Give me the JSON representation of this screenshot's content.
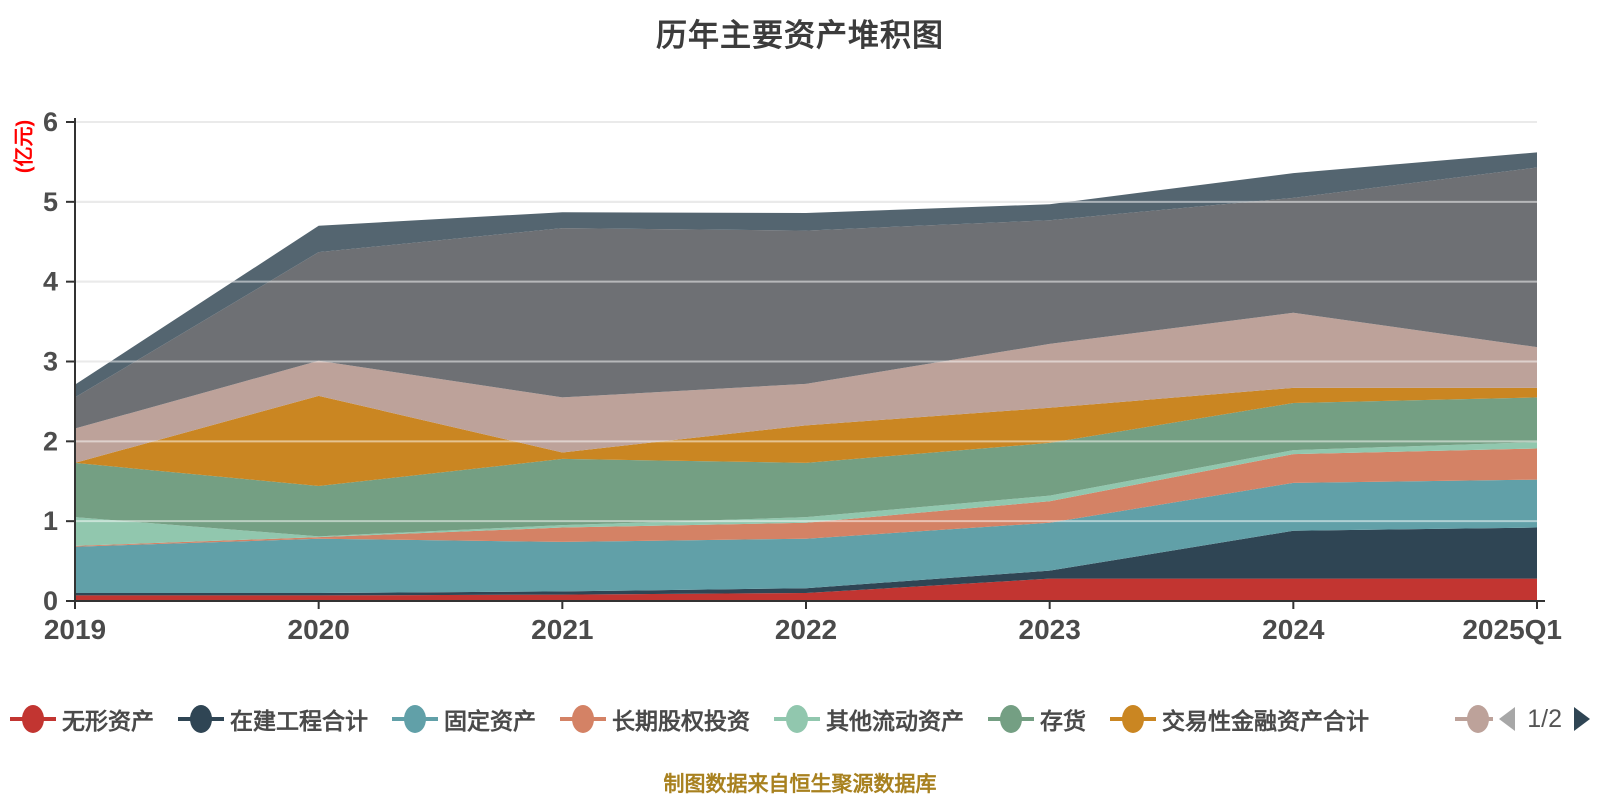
{
  "header": {
    "title": "历年主要资产堆积图"
  },
  "y_axis": {
    "unit_label": "(亿元)",
    "unit_color": "#ff0000",
    "tick_labels": [
      "0",
      "1",
      "2",
      "3",
      "4",
      "5",
      "6"
    ],
    "tick_color": "#4d4d4d"
  },
  "x_axis": {
    "tick_labels": [
      "2019",
      "2020",
      "2021",
      "2022",
      "2023",
      "2024",
      "2025Q1"
    ],
    "tick_color": "#4a4a4a"
  },
  "legend": {
    "page_label": "1/2",
    "prev_arrow_color": "#a7a7a7",
    "next_arrow_color": "#2f4554",
    "overflow_marker_color": "#bda29a"
  },
  "footer": {
    "caption": "制图数据来自恒生聚源数据库",
    "color": "#a8811f"
  },
  "chart_data": {
    "type": "area",
    "stacked": true,
    "title": "历年主要资产堆积图",
    "ylabel": "(亿元)",
    "categories": [
      "2019",
      "2020",
      "2021",
      "2022",
      "2023",
      "2024",
      "2025Q1"
    ],
    "ylim": [
      0,
      6
    ],
    "yticks": [
      0,
      1,
      2,
      3,
      4,
      5,
      6
    ],
    "grid": true,
    "legend_position": "bottom",
    "legend_page": "1/2",
    "series": [
      {
        "name": "无形资产",
        "color": "#c23531",
        "in_legend": true,
        "values": [
          0.07,
          0.07,
          0.08,
          0.1,
          0.28,
          0.28,
          0.28
        ]
      },
      {
        "name": "在建工程合计",
        "color": "#2f4554",
        "in_legend": true,
        "values": [
          0.03,
          0.03,
          0.04,
          0.06,
          0.1,
          0.6,
          0.64
        ]
      },
      {
        "name": "固定资产",
        "color": "#61a0a8",
        "in_legend": true,
        "values": [
          0.58,
          0.68,
          0.62,
          0.62,
          0.6,
          0.6,
          0.6
        ]
      },
      {
        "name": "长期股权投资",
        "color": "#d48265",
        "in_legend": true,
        "values": [
          0.01,
          0.02,
          0.18,
          0.2,
          0.27,
          0.36,
          0.39
        ]
      },
      {
        "name": "其他流动资产",
        "color": "#91c7ae",
        "in_legend": true,
        "values": [
          0.36,
          0.01,
          0.03,
          0.07,
          0.07,
          0.05,
          0.08
        ]
      },
      {
        "name": "存货",
        "color": "#749f83",
        "in_legend": true,
        "values": [
          0.68,
          0.63,
          0.83,
          0.68,
          0.66,
          0.59,
          0.56
        ]
      },
      {
        "name": "交易性金融资产合计",
        "color": "#ca8622",
        "in_legend": true,
        "values": [
          0.0,
          1.13,
          0.08,
          0.47,
          0.44,
          0.19,
          0.12
        ]
      },
      {
        "name": "",
        "color": "#bda29a",
        "in_legend": false,
        "values": [
          0.43,
          0.44,
          0.69,
          0.52,
          0.8,
          0.94,
          0.51
        ]
      },
      {
        "name": "",
        "color": "#6e7074",
        "in_legend": false,
        "values": [
          0.39,
          1.36,
          2.12,
          1.92,
          1.55,
          1.44,
          2.25
        ]
      },
      {
        "name": "",
        "color": "#546570",
        "in_legend": false,
        "values": [
          0.16,
          0.33,
          0.2,
          0.22,
          0.2,
          0.31,
          0.19
        ]
      }
    ]
  }
}
